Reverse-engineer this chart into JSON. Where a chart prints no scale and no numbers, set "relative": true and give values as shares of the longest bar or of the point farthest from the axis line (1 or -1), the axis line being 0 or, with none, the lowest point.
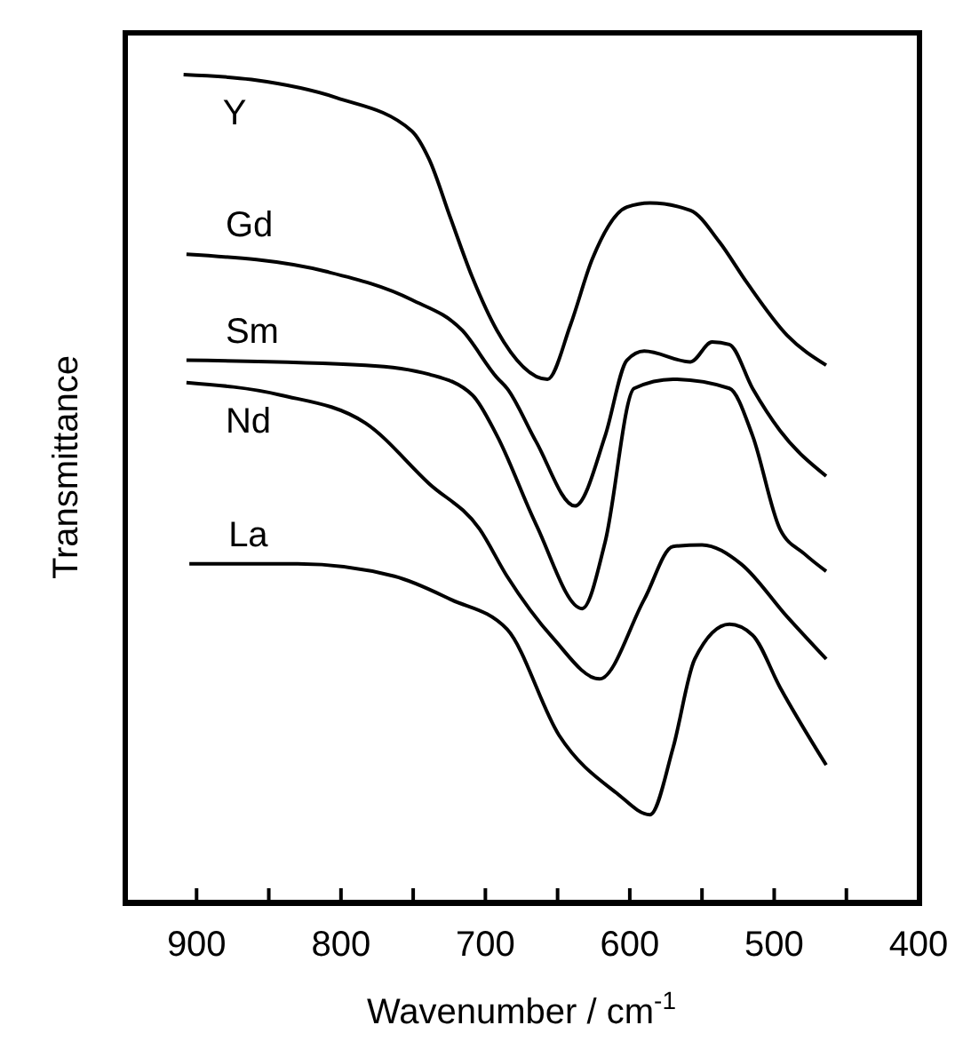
{
  "chart_data": {
    "type": "line",
    "relative": true,
    "xlabel": "Wavenumber / cm$^{-1}$",
    "ylabel": "Transmittance",
    "xlim": [
      950,
      400
    ],
    "xticks": [
      900,
      {
        "value": 850,
        "label": null
      },
      800,
      {
        "value": 750,
        "label": null
      },
      700,
      {
        "value": 650,
        "label": null
      },
      600,
      {
        "value": 550,
        "label": null
      },
      500,
      {
        "value": 450,
        "label": null
      },
      400
    ],
    "marker": "none",
    "line_style": "solid",
    "grid": false,
    "legend": false,
    "series": [
      {
        "name": "Y",
        "color": "#000000",
        "x": [
          909,
          862,
          803,
          751,
          739,
          724,
          709,
          692,
          657,
          641,
          626,
          602,
          586,
          558,
          538,
          519,
          491,
          464
        ],
        "values": [
          1.0,
          0.994,
          0.972,
          0.932,
          0.898,
          0.826,
          0.755,
          0.691,
          0.632,
          0.698,
          0.777,
          0.84,
          0.845,
          0.836,
          0.798,
          0.749,
          0.685,
          0.649
        ]
      },
      {
        "name": "Gd",
        "color": "#000000",
        "x": [
          907,
          810,
          751,
          716,
          692,
          685,
          665,
          638,
          617,
          602,
          590,
          558,
          543,
          531,
          515,
          496,
          464
        ],
        "values": [
          0.783,
          0.762,
          0.728,
          0.691,
          0.634,
          0.621,
          0.557,
          0.479,
          0.564,
          0.655,
          0.666,
          0.653,
          0.677,
          0.674,
          0.621,
          0.57,
          0.515
        ]
      },
      {
        "name": "Sm",
        "color": "#000000",
        "x": [
          907,
          783,
          739,
          709,
          692,
          665,
          633,
          617,
          597,
          570,
          531,
          515,
          496,
          479,
          464
        ],
        "values": [
          0.655,
          0.649,
          0.638,
          0.613,
          0.564,
          0.457,
          0.355,
          0.436,
          0.621,
          0.632,
          0.621,
          0.564,
          0.451,
          0.421,
          0.4
        ]
      },
      {
        "name": "Nd",
        "color": "#000000",
        "x": [
          907,
          842,
          783,
          739,
          704,
          685,
          653,
          621,
          590,
          570,
          550,
          523,
          491,
          464
        ],
        "values": [
          0.628,
          0.613,
          0.579,
          0.506,
          0.451,
          0.394,
          0.319,
          0.27,
          0.366,
          0.43,
          0.432,
          0.409,
          0.345,
          0.294
        ]
      },
      {
        "name": "La",
        "color": "#000000",
        "x": [
          905,
          830,
          763,
          724,
          685,
          649,
          609,
          586,
          570,
          555,
          531,
          515,
          496,
          464
        ],
        "values": [
          0.409,
          0.409,
          0.394,
          0.366,
          0.33,
          0.202,
          0.132,
          0.106,
          0.187,
          0.294,
          0.336,
          0.323,
          0.26,
          0.166
        ]
      }
    ]
  }
}
